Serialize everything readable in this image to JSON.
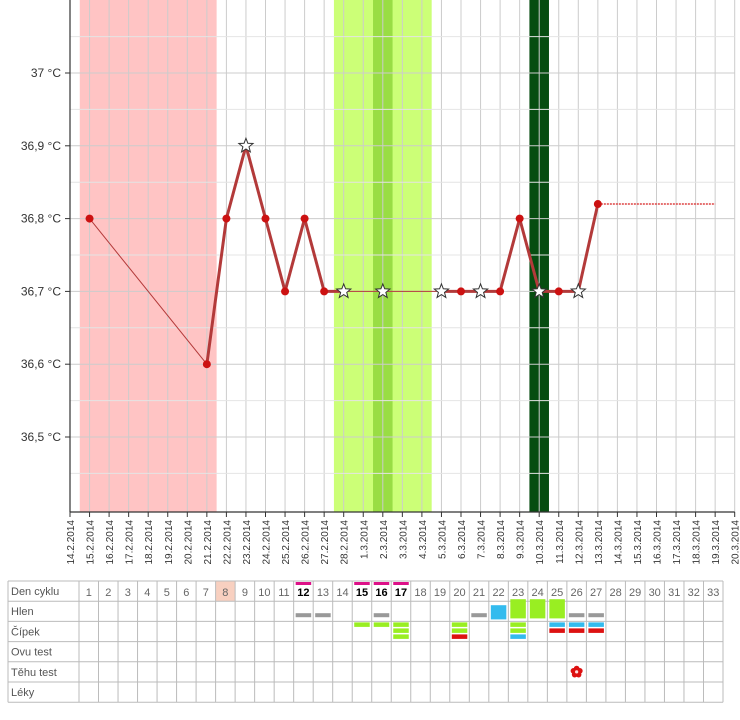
{
  "chart_data": {
    "type": "line",
    "title": "",
    "xlabel": "",
    "ylabel": "",
    "ylim": [
      36.4,
      37.1
    ],
    "y_ticks": [
      {
        "value": 36.5,
        "label": "36,5 °C"
      },
      {
        "value": 36.6,
        "label": "36,6 °C"
      },
      {
        "value": 36.7,
        "label": "36,7 °C"
      },
      {
        "value": 36.8,
        "label": "36,8 °C"
      },
      {
        "value": 36.9,
        "label": "36,9 °C"
      },
      {
        "value": 37.0,
        "label": "37 °C"
      }
    ],
    "x_dates": [
      "14.2.2014",
      "15.2.2014",
      "16.2.2014",
      "17.2.2014",
      "18.2.2014",
      "19.2.2014",
      "20.2.2014",
      "21.2.2014",
      "22.2.2014",
      "23.2.2014",
      "24.2.2014",
      "25.2.2014",
      "26.2.2014",
      "27.2.2014",
      "28.2.2014",
      "1.3.2014",
      "2.3.2014",
      "3.3.2014",
      "4.3.2014",
      "5.3.2014",
      "6.3.2014",
      "7.3.2014",
      "8.3.2014",
      "9.3.2014",
      "10.3.2014",
      "11.3.2014",
      "12.3.2014",
      "13.3.2014",
      "14.3.2014",
      "15.3.2014",
      "16.3.2014",
      "17.3.2014",
      "18.3.2014",
      "19.3.2014",
      "20.3.2014"
    ],
    "series": [
      {
        "name": "",
        "points": [
          {
            "day": 1,
            "date": "15.2.2014",
            "value": 36.8,
            "marker": "dot"
          },
          {
            "day": 7,
            "date": "21.2.2014",
            "value": 36.6,
            "marker": "dot"
          },
          {
            "day": 8,
            "date": "22.2.2014",
            "value": 36.8,
            "marker": "dot"
          },
          {
            "day": 9,
            "date": "23.2.2014",
            "value": 36.9,
            "marker": "star"
          },
          {
            "day": 10,
            "date": "24.2.2014",
            "value": 36.8,
            "marker": "dot"
          },
          {
            "day": 11,
            "date": "25.2.2014",
            "value": 36.7,
            "marker": "dot"
          },
          {
            "day": 12,
            "date": "26.2.2014",
            "value": 36.8,
            "marker": "dot"
          },
          {
            "day": 13,
            "date": "27.2.2014",
            "value": 36.7,
            "marker": "dot"
          },
          {
            "day": 14,
            "date": "28.2.2014",
            "value": 36.7,
            "marker": "star"
          },
          {
            "day": 16,
            "date": "2.3.2014",
            "value": 36.7,
            "marker": "star"
          },
          {
            "day": 19,
            "date": "5.3.2014",
            "value": 36.7,
            "marker": "star"
          },
          {
            "day": 20,
            "date": "6.3.2014",
            "value": 36.7,
            "marker": "dot"
          },
          {
            "day": 21,
            "date": "7.3.2014",
            "value": 36.7,
            "marker": "star"
          },
          {
            "day": 22,
            "date": "8.3.2014",
            "value": 36.7,
            "marker": "dot"
          },
          {
            "day": 23,
            "date": "9.3.2014",
            "value": 36.8,
            "marker": "dot"
          },
          {
            "day": 24,
            "date": "10.3.2014",
            "value": 36.7,
            "marker": "star"
          },
          {
            "day": 25,
            "date": "11.3.2014",
            "value": 36.7,
            "marker": "dot"
          },
          {
            "day": 26,
            "date": "12.3.2014",
            "value": 36.7,
            "marker": "star"
          },
          {
            "day": 27,
            "date": "13.3.2014",
            "value": 36.82,
            "marker": "dot"
          }
        ],
        "projection": {
          "from_day": 27,
          "to_day": 33,
          "value": 36.82
        }
      }
    ],
    "bands": [
      {
        "from_day": 0.5,
        "to_day": 7.5,
        "color": "#ffc4c4"
      },
      {
        "from_day": 13.5,
        "to_day": 18.5,
        "color": "#ccff77"
      },
      {
        "from_day": 15.5,
        "to_day": 16.5,
        "color": "#99dd44"
      },
      {
        "from_day": 23.5,
        "to_day": 24.5,
        "color": "#064d10"
      }
    ],
    "colors": {
      "line": "#b33a3a",
      "dot": "#cc1111",
      "grid": "#cccccc"
    }
  },
  "table": {
    "row_labels": [
      "Den cyklu",
      "Hlen",
      "Čípek",
      "Ovu test",
      "Těhu test",
      "Léky"
    ],
    "days": [
      "1",
      "2",
      "3",
      "4",
      "5",
      "6",
      "7",
      "8",
      "9",
      "10",
      "11",
      "12",
      "13",
      "14",
      "15",
      "16",
      "17",
      "18",
      "19",
      "20",
      "21",
      "22",
      "23",
      "24",
      "25",
      "26",
      "27",
      "28",
      "29",
      "30",
      "31",
      "32",
      "33"
    ],
    "highlight_day": 8,
    "pink_marked_days": [
      12,
      15,
      16,
      17
    ],
    "hlen": [
      {
        "day": 12,
        "kind": "gray-bar"
      },
      {
        "day": 13,
        "kind": "gray-bar"
      },
      {
        "day": 16,
        "kind": "gray-bar"
      },
      {
        "day": 21,
        "kind": "gray-bar"
      },
      {
        "day": 22,
        "kind": "blue-box"
      },
      {
        "day": 23,
        "kind": "green-box"
      },
      {
        "day": 24,
        "kind": "green-box"
      },
      {
        "day": 25,
        "kind": "green-box"
      },
      {
        "day": 26,
        "kind": "gray-bar"
      },
      {
        "day": 27,
        "kind": "gray-bar"
      }
    ],
    "cipek": [
      {
        "day": 15,
        "bars": [
          "green"
        ]
      },
      {
        "day": 16,
        "bars": [
          "green"
        ]
      },
      {
        "day": 17,
        "bars": [
          "green",
          "green",
          "green"
        ]
      },
      {
        "day": 20,
        "bars": [
          "green",
          "green",
          "red"
        ]
      },
      {
        "day": 23,
        "bars": [
          "green",
          "green",
          "blue"
        ]
      },
      {
        "day": 25,
        "bars": [
          "blue",
          "red"
        ]
      },
      {
        "day": 26,
        "bars": [
          "blue",
          "red"
        ]
      },
      {
        "day": 27,
        "bars": [
          "blue",
          "red"
        ]
      }
    ],
    "tehu_test": [
      {
        "day": 26,
        "icon": "red-flower-icon"
      }
    ],
    "colors": {
      "green": "#99ee22",
      "red": "#dd1111",
      "blue": "#33bbee",
      "gray": "#999999",
      "pink": "#dd1188",
      "highlight": "#f8d0c0"
    }
  }
}
